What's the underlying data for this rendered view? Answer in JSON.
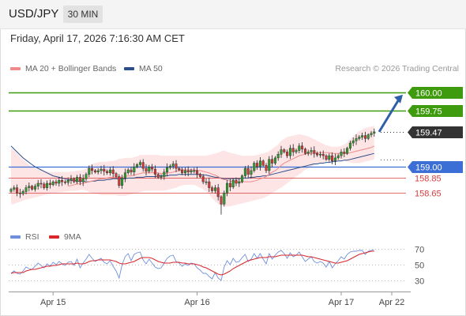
{
  "header": {
    "symbol": "USD/JPY",
    "timeframe": "30 MIN"
  },
  "datetime": "Friday, April 17, 2026 7:16:30 AM CET",
  "credit": "Research © 2026 Trading Central",
  "colors": {
    "green": "#3e9b0e",
    "blue": "#3b6fd6",
    "red": "#d73c3c",
    "dark": "#333333",
    "arrow": "#2f5fa8",
    "ma20": "#f08a8a",
    "band": "#fbd3d3",
    "ma50": "#2c4f8c",
    "rsi": "#6f8fdd",
    "rsi_ma": "#d8262a"
  },
  "chart_data": [
    {
      "type": "line",
      "name": "price",
      "legend": [
        {
          "label": "MA 20 + Bollinger Bands",
          "color": "#f08a8a"
        },
        {
          "label": "MA 50",
          "color": "#2c4f8c"
        }
      ],
      "x_ticks": [
        {
          "label": "Apr 15",
          "index": 14
        },
        {
          "label": "Apr 16",
          "index": 62
        },
        {
          "label": "Apr 17",
          "index": 110
        },
        {
          "label": "Apr 22",
          "index": 126
        }
      ],
      "ylim": [
        158.25,
        160.2
      ],
      "levels": [
        {
          "value": 160.0,
          "label": "160.00",
          "color": "#3e9b0e",
          "style": "solid-box"
        },
        {
          "value": 159.75,
          "label": "159.75",
          "color": "#3e9b0e",
          "style": "solid-box"
        },
        {
          "value": 159.47,
          "label": "159.47",
          "color": "#333333",
          "style": "dotted-box"
        },
        {
          "value": 159.0,
          "label": "159.00",
          "color": "#3b6fd6",
          "style": "solid-box"
        },
        {
          "value": 158.85,
          "label": "158.85",
          "color": "#d73c3c",
          "style": "text"
        },
        {
          "value": 158.65,
          "label": "158.65",
          "color": "#d73c3c",
          "style": "text"
        }
      ],
      "close": [
        158.7,
        158.72,
        158.65,
        158.64,
        158.67,
        158.72,
        158.74,
        158.7,
        158.74,
        158.78,
        158.77,
        158.72,
        158.78,
        158.76,
        158.8,
        158.78,
        158.82,
        158.8,
        158.79,
        158.82,
        158.84,
        158.8,
        158.86,
        158.8,
        158.84,
        158.9,
        158.98,
        158.95,
        158.93,
        158.95,
        158.97,
        158.94,
        158.92,
        158.96,
        158.91,
        158.87,
        158.75,
        158.85,
        158.92,
        158.96,
        158.93,
        159.0,
        159.03,
        159.06,
        158.98,
        158.94,
        159.0,
        158.97,
        158.9,
        158.86,
        158.87,
        158.93,
        158.99,
        159.01,
        159.04,
        158.98,
        158.96,
        158.92,
        158.95,
        158.93,
        158.95,
        158.95,
        158.9,
        158.87,
        158.8,
        158.8,
        158.72,
        158.68,
        158.72,
        158.6,
        158.5,
        158.65,
        158.78,
        158.73,
        158.82,
        158.78,
        158.8,
        158.88,
        158.98,
        158.9,
        158.95,
        159.05,
        159.0,
        159.08,
        159.02,
        158.95,
        159.1,
        159.05,
        159.12,
        159.17,
        159.23,
        159.2,
        159.15,
        159.25,
        159.2,
        159.22,
        159.28,
        159.24,
        159.18,
        159.2,
        159.22,
        159.18,
        159.16,
        159.17,
        159.15,
        159.1,
        159.15,
        159.08,
        159.12,
        159.15,
        159.2,
        159.18,
        159.25,
        159.32,
        159.35,
        159.38,
        159.4,
        159.42,
        159.38,
        159.43,
        159.45,
        159.47
      ],
      "ma20": [
        null,
        null,
        null,
        null,
        null,
        null,
        null,
        null,
        null,
        null,
        null,
        null,
        null,
        null,
        null,
        null,
        null,
        null,
        null,
        158.74,
        158.75,
        158.76,
        158.77,
        158.77,
        158.78,
        158.79,
        158.8,
        158.81,
        158.82,
        158.83,
        158.84,
        158.84,
        158.85,
        158.86,
        158.86,
        158.86,
        158.86,
        158.86,
        158.87,
        158.88,
        158.88,
        158.89,
        158.9,
        158.91,
        158.92,
        158.92,
        158.92,
        158.92,
        158.92,
        158.92,
        158.91,
        158.91,
        158.92,
        158.92,
        158.93,
        158.94,
        158.95,
        158.96,
        158.96,
        158.96,
        158.96,
        158.96,
        158.95,
        158.95,
        158.94,
        158.93,
        158.92,
        158.9,
        158.89,
        158.87,
        158.84,
        158.83,
        158.82,
        158.81,
        158.8,
        158.8,
        158.8,
        158.8,
        158.8,
        158.8,
        158.8,
        158.81,
        158.82,
        158.84,
        158.85,
        158.87,
        158.9,
        158.93,
        158.95,
        158.98,
        159.02,
        159.05,
        159.07,
        159.09,
        159.11,
        159.13,
        159.15,
        159.16,
        159.17,
        159.18,
        159.18,
        159.18,
        159.19,
        159.19,
        159.19,
        159.19,
        159.19,
        159.18,
        159.18,
        159.18,
        159.18,
        159.18,
        159.18,
        159.19,
        159.2,
        159.21,
        159.22,
        159.23,
        159.24,
        159.25,
        159.26,
        159.28
      ],
      "ma50": [
        159.28,
        159.24,
        159.2,
        159.16,
        159.12,
        159.09,
        159.06,
        159.03,
        159.0,
        158.98,
        158.96,
        158.94,
        158.92,
        158.9,
        158.88,
        158.87,
        158.86,
        158.85,
        158.84,
        158.83,
        158.82,
        158.82,
        158.81,
        158.81,
        158.81,
        158.8,
        158.8,
        158.81,
        158.81,
        158.82,
        158.82,
        158.82,
        158.83,
        158.83,
        158.84,
        158.84,
        158.84,
        158.84,
        158.84,
        158.85,
        158.85,
        158.85,
        158.86,
        158.86,
        158.86,
        158.87,
        158.87,
        158.87,
        158.87,
        158.88,
        158.88,
        158.88,
        158.88,
        158.89,
        158.89,
        158.89,
        158.9,
        158.9,
        158.9,
        158.9,
        158.9,
        158.9,
        158.9,
        158.9,
        158.89,
        158.89,
        158.88,
        158.87,
        158.86,
        158.86,
        158.85,
        158.84,
        158.84,
        158.84,
        158.84,
        158.84,
        158.84,
        158.85,
        158.85,
        158.85,
        158.86,
        158.86,
        158.87,
        158.87,
        158.88,
        158.88,
        158.89,
        158.9,
        158.91,
        158.92,
        158.93,
        158.94,
        158.95,
        158.96,
        158.97,
        158.98,
        158.99,
        159.0,
        159.01,
        159.02,
        159.03,
        159.04,
        159.04,
        159.05,
        159.05,
        159.06,
        159.06,
        159.07,
        159.07,
        159.08,
        159.08,
        159.09,
        159.09,
        159.1,
        159.11,
        159.12,
        159.13,
        159.14,
        159.15,
        159.16,
        159.17,
        159.18
      ],
      "bb_upper": [
        159.25,
        159.22,
        159.18,
        159.14,
        159.1,
        159.06,
        159.03,
        159.0,
        158.98,
        158.97,
        158.96,
        158.95,
        158.94,
        158.93,
        158.93,
        158.93,
        158.93,
        158.93,
        158.93,
        158.93,
        158.94,
        158.94,
        158.95,
        158.95,
        158.96,
        158.98,
        159.02,
        159.04,
        159.05,
        159.06,
        159.07,
        159.07,
        159.07,
        159.08,
        159.08,
        159.09,
        159.11,
        159.11,
        159.12,
        159.12,
        159.12,
        159.13,
        159.14,
        159.16,
        159.16,
        159.16,
        159.16,
        159.16,
        159.16,
        159.16,
        159.15,
        159.15,
        159.15,
        159.15,
        159.15,
        159.15,
        159.15,
        159.15,
        159.15,
        159.15,
        159.15,
        159.15,
        159.15,
        159.15,
        159.15,
        159.15,
        159.16,
        159.17,
        159.18,
        159.19,
        159.21,
        159.22,
        159.2,
        159.19,
        159.18,
        159.17,
        159.16,
        159.15,
        159.15,
        159.15,
        159.15,
        159.15,
        159.16,
        159.17,
        159.18,
        159.19,
        159.21,
        159.24,
        159.27,
        159.3,
        159.35,
        159.38,
        159.4,
        159.41,
        159.42,
        159.43,
        159.44,
        159.43,
        159.42,
        159.41,
        159.39,
        159.37,
        159.35,
        159.33,
        159.31,
        159.29,
        159.28,
        159.27,
        159.27,
        159.27,
        159.28,
        159.3,
        159.33,
        159.37,
        159.41,
        159.45,
        159.48,
        159.5,
        159.52,
        159.53,
        159.54,
        159.55
      ],
      "bb_lower": [
        158.5,
        158.5,
        158.52,
        158.53,
        158.55,
        158.56,
        158.57,
        158.58,
        158.59,
        158.6,
        158.61,
        158.62,
        158.63,
        158.64,
        158.65,
        158.65,
        158.66,
        158.66,
        158.67,
        158.67,
        158.68,
        158.68,
        158.68,
        158.69,
        158.69,
        158.68,
        158.66,
        158.65,
        158.64,
        158.63,
        158.62,
        158.62,
        158.62,
        158.62,
        158.62,
        158.62,
        158.61,
        158.61,
        158.61,
        158.62,
        158.63,
        158.64,
        158.65,
        158.66,
        158.67,
        158.68,
        158.68,
        158.68,
        158.68,
        158.68,
        158.68,
        158.68,
        158.69,
        158.7,
        158.71,
        158.72,
        158.74,
        158.75,
        158.76,
        158.76,
        158.76,
        158.76,
        158.74,
        158.72,
        158.7,
        158.67,
        158.63,
        158.58,
        158.54,
        158.5,
        158.48,
        158.47,
        158.47,
        158.47,
        158.48,
        158.49,
        158.5,
        158.51,
        158.52,
        158.53,
        158.54,
        158.55,
        158.56,
        158.57,
        158.58,
        158.6,
        158.62,
        158.65,
        158.67,
        158.7,
        158.72,
        158.75,
        158.78,
        158.81,
        158.84,
        158.87,
        158.9,
        158.93,
        158.96,
        158.98,
        159.0,
        159.02,
        159.04,
        159.05,
        159.06,
        159.07,
        159.08,
        159.08,
        159.08,
        159.08,
        159.08,
        159.08,
        159.07,
        159.06,
        159.05,
        159.05,
        159.05,
        159.06,
        159.07,
        159.08,
        159.09,
        159.1
      ],
      "projection": {
        "from": 159.47,
        "to": 160.0
      }
    },
    {
      "type": "line",
      "name": "rsi-panel",
      "legend": [
        {
          "label": "RSI",
          "color": "#6f8fdd"
        },
        {
          "label": "9MA",
          "color": "#d8262a"
        }
      ],
      "ylim": [
        20,
        80
      ],
      "y_ticks": [
        70,
        50,
        30
      ],
      "rsi": [
        39,
        42,
        39,
        38,
        42,
        47,
        45,
        44,
        48,
        52,
        49,
        46,
        51,
        48,
        53,
        50,
        54,
        51,
        49,
        53,
        54,
        49,
        57,
        46,
        52,
        57,
        63,
        58,
        54,
        56,
        58,
        53,
        51,
        55,
        48,
        42,
        33,
        50,
        60,
        64,
        55,
        63,
        65,
        66,
        56,
        51,
        57,
        52,
        47,
        45,
        46,
        52,
        58,
        61,
        62,
        54,
        52,
        48,
        51,
        49,
        52,
        51,
        46,
        43,
        39,
        39,
        35,
        32,
        40,
        33,
        30,
        47,
        55,
        50,
        58,
        53,
        54,
        59,
        63,
        54,
        57,
        64,
        58,
        64,
        57,
        51,
        64,
        57,
        62,
        66,
        68,
        64,
        58,
        65,
        60,
        62,
        66,
        60,
        54,
        57,
        60,
        54,
        52,
        54,
        52,
        47,
        54,
        46,
        51,
        55,
        60,
        57,
        63,
        66,
        67,
        67,
        68,
        68,
        63,
        67,
        68,
        69
      ],
      "rsi_ma": [
        39,
        40,
        40,
        40,
        40,
        42,
        43,
        44,
        44,
        45,
        46,
        47,
        48,
        48,
        49,
        49,
        50,
        51,
        51,
        51,
        51,
        51,
        52,
        51,
        51,
        52,
        54,
        55,
        55,
        56,
        56,
        56,
        56,
        56,
        55,
        54,
        52,
        51,
        51,
        52,
        53,
        54,
        56,
        58,
        59,
        59,
        59,
        58,
        56,
        54,
        53,
        52,
        52,
        52,
        53,
        53,
        53,
        52,
        52,
        51,
        51,
        51,
        50,
        49,
        47,
        46,
        44,
        42,
        40,
        38,
        37,
        38,
        40,
        42,
        45,
        47,
        49,
        51,
        53,
        55,
        56,
        57,
        58,
        59,
        59,
        59,
        60,
        60,
        60,
        61,
        62,
        62,
        62,
        62,
        62,
        62,
        62,
        62,
        61,
        60,
        60,
        59,
        58,
        57,
        56,
        55,
        54,
        53,
        52,
        52,
        53,
        54,
        55,
        57,
        59,
        61,
        63,
        64,
        65,
        66,
        67,
        67
      ]
    }
  ]
}
